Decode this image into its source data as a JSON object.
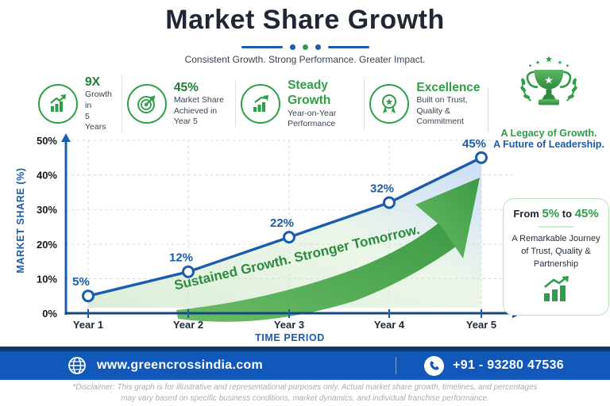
{
  "colors": {
    "primary_blue": "#1b5cad",
    "brand_green": "#2e9e49",
    "footer_blue": "#1258ba",
    "navy_line": "#0d3a74",
    "title_text": "#1e2733"
  },
  "header": {
    "title": "Market Share Growth",
    "subtitle": "Consistent Growth. Strong Performance. Greater Impact."
  },
  "badges": [
    {
      "icon": "growth-trend-icon",
      "stat": "9X",
      "line1": "Growth in",
      "line2": "5 Years"
    },
    {
      "icon": "target-arrow-icon",
      "stat": "45%",
      "line1": "Market Share",
      "line2": "Achieved in Year 5"
    },
    {
      "icon": "bar-growth-icon",
      "stat": "Steady Growth",
      "line1": "Year-on-Year",
      "line2": "Performance"
    },
    {
      "icon": "medal-icon",
      "stat": "Excellence",
      "line1": "Built on Trust,",
      "line2": "Quality & Commitment"
    }
  ],
  "legacy_banner": {
    "icon": "trophy-icon",
    "line1": "A Legacy of Growth.",
    "line2": "A Future of Leadership."
  },
  "chart_data": {
    "type": "line",
    "x": [
      "Year 1",
      "Year 2",
      "Year 3",
      "Year 4",
      "Year 5"
    ],
    "values": [
      5,
      12,
      22,
      32,
      45
    ],
    "point_labels": [
      "5%",
      "12%",
      "22%",
      "32%",
      "45%"
    ],
    "xlabel": "TIME PERIOD",
    "ylabel": "MARKET SHARE (%)",
    "ylim": [
      0,
      50
    ],
    "yticks": [
      "0%",
      "10%",
      "20%",
      "30%",
      "40%",
      "50%"
    ],
    "ytick_step": 10,
    "grid": true,
    "legend_position": "none",
    "annotation": "Sustained Growth. Stronger Tomorrow.",
    "line_color": "#1b5cad",
    "marker_fill": "#ffffff",
    "arrow_color": "#4aa84e"
  },
  "side_panel": {
    "from_word": "From",
    "from_value": "5%",
    "to_word": "to",
    "to_value": "45%",
    "body": "A Remarkable Journey of Trust, Quality & Partnership",
    "icon": "growth-bars-icon"
  },
  "footer": {
    "website_icon": "globe-icon",
    "website": "www.greencrossindia.com",
    "phone_icon": "phone-icon",
    "phone": "+91 - 93280 47536"
  },
  "disclaimer": {
    "line1": "*Disclaimer: This graph is for illustrative and representational purposes only. Actual market share growth, timelines, and percentages",
    "line2": "may vary based on specific business conditions, market dynamics, and individual franchise performance."
  }
}
